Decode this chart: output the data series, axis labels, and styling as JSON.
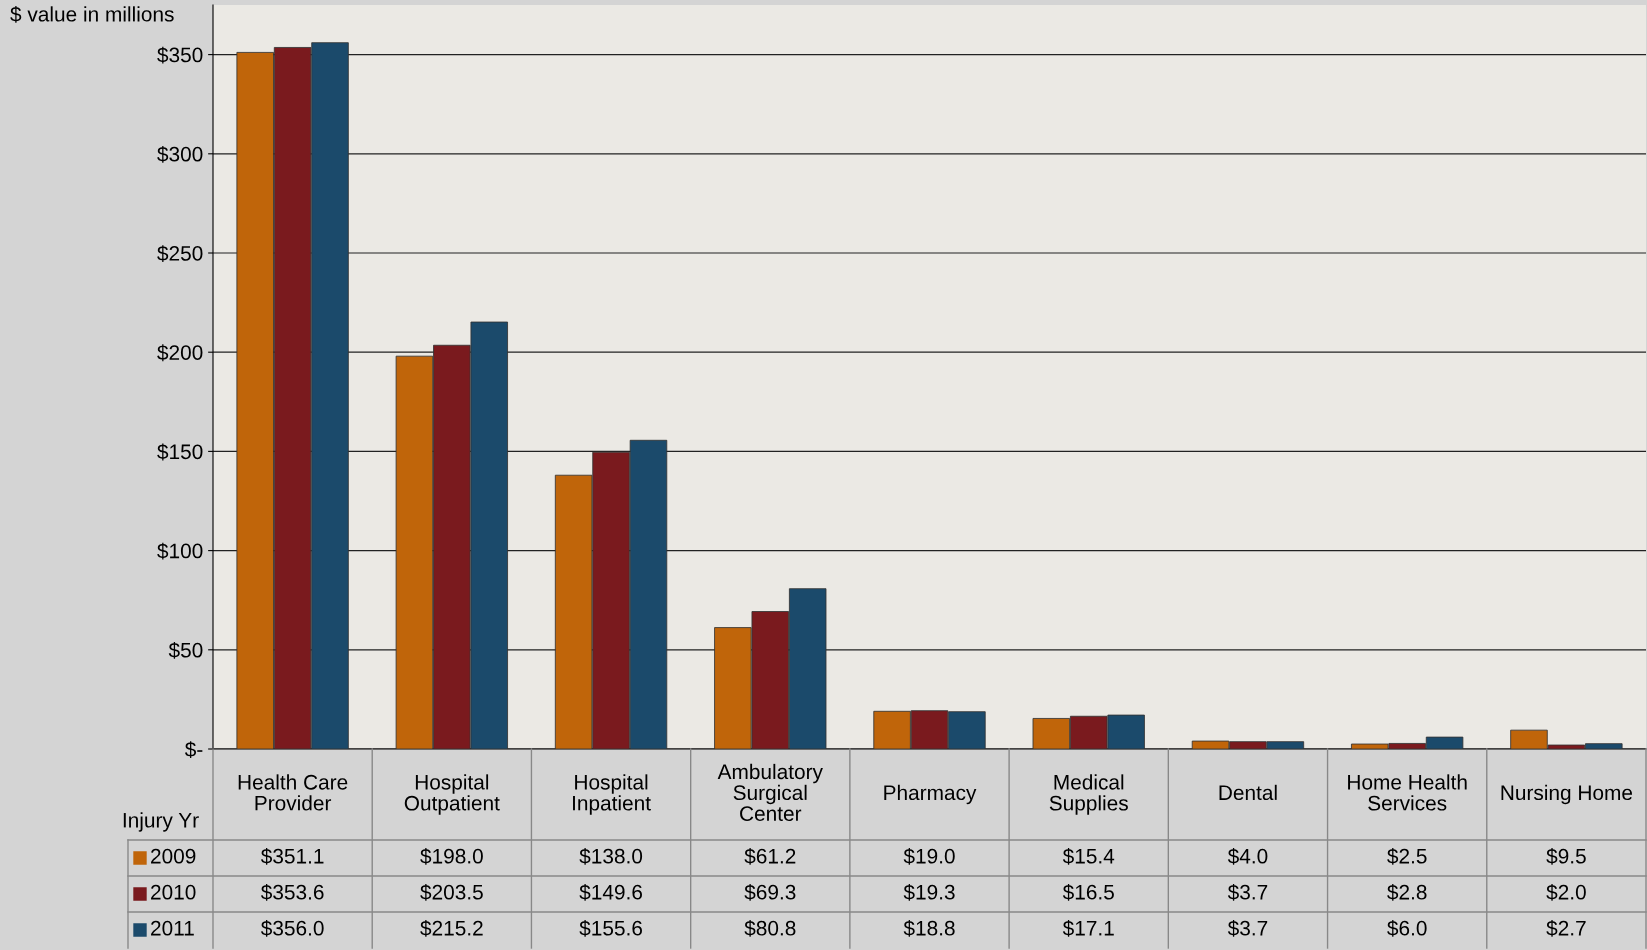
{
  "chart_data": {
    "type": "bar",
    "ylabel": "$ value in millions",
    "legend_title": "Injury Yr",
    "legend": "bottom",
    "grid": "y",
    "categories": [
      "Health Care Provider",
      "Hospital Outpatient",
      "Hospital Inpatient",
      "Ambulatory Surgical Center",
      "Pharmacy",
      "Medical Supplies",
      "Dental",
      "Home Health Services",
      "Nursing Home"
    ],
    "ylim": [
      0,
      375
    ],
    "yticks": [
      {
        "value": 0,
        "label": "$-"
      },
      {
        "value": 50,
        "label": "$50"
      },
      {
        "value": 100,
        "label": "$100"
      },
      {
        "value": 150,
        "label": "$150"
      },
      {
        "value": 200,
        "label": "$200"
      },
      {
        "value": 250,
        "label": "$250"
      },
      {
        "value": 300,
        "label": "$300"
      },
      {
        "value": 350,
        "label": "$350"
      }
    ],
    "series": [
      {
        "name": "2009",
        "color": "#c0650a",
        "values": [
          351.1,
          198.0,
          138.0,
          61.2,
          19.0,
          15.4,
          4.0,
          2.5,
          9.5
        ],
        "value_labels": [
          "$351.1",
          "$198.0",
          "$138.0",
          "$61.2",
          "$19.0",
          "$15.4",
          "$4.0",
          "$2.5",
          "$9.5"
        ]
      },
      {
        "name": "2010",
        "color": "#7a1a1e",
        "values": [
          353.6,
          203.5,
          149.6,
          69.3,
          19.3,
          16.5,
          3.7,
          2.8,
          2.0
        ],
        "value_labels": [
          "$353.6",
          "$203.5",
          "$149.6",
          "$69.3",
          "$19.3",
          "$16.5",
          "$3.7",
          "$2.8",
          "$2.0"
        ]
      },
      {
        "name": "2011",
        "color": "#1b4a6b",
        "values": [
          356.0,
          215.2,
          155.6,
          80.8,
          18.8,
          17.1,
          3.7,
          6.0,
          2.7
        ],
        "value_labels": [
          "$356.0",
          "$215.2",
          "$155.6",
          "$80.8",
          "$18.8",
          "$17.1",
          "$3.7",
          "$6.0",
          "$2.7"
        ]
      }
    ]
  }
}
